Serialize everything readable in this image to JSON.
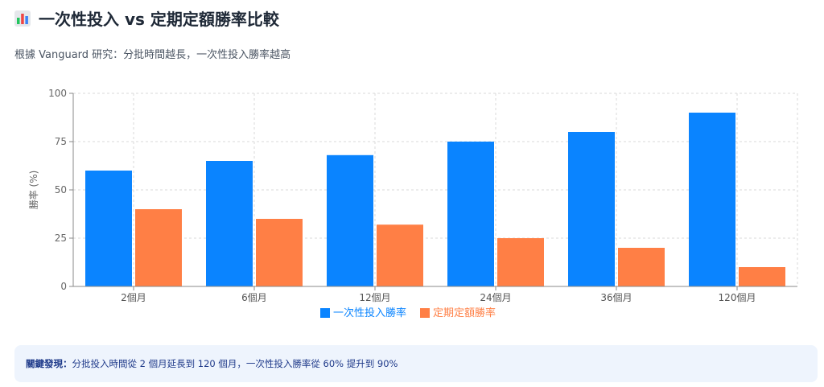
{
  "header": {
    "title": "一次性投入 vs 定期定額勝率比較",
    "subtitle": "根據 Vanguard 研究：分批時間越長，一次性投入勝率越高"
  },
  "icons": {
    "title_icon": "bar-chart-icon"
  },
  "colors": {
    "lump_sum": "#0a84ff",
    "dca": "#ff7f45",
    "grid": "#d9d9d9",
    "axis": "#888888"
  },
  "chart_data": {
    "type": "bar",
    "categories": [
      "2個月",
      "6個月",
      "12個月",
      "24個月",
      "36個月",
      "120個月"
    ],
    "series": [
      {
        "name": "一次性投入勝率",
        "values": [
          60,
          65,
          68,
          75,
          80,
          90
        ]
      },
      {
        "name": "定期定額勝率",
        "values": [
          40,
          35,
          32,
          25,
          20,
          10
        ]
      }
    ],
    "ylabel": "勝率 (%)",
    "xlabel": "",
    "ylim": [
      0,
      100
    ],
    "yticks": [
      0,
      25,
      50,
      75,
      100
    ],
    "grid": true,
    "legend_position": "bottom"
  },
  "finding": {
    "label": "關鍵發現：",
    "text": "分批投入時間從 2 個月延長到 120 個月，一次性投入勝率從 60% 提升到 90%"
  }
}
